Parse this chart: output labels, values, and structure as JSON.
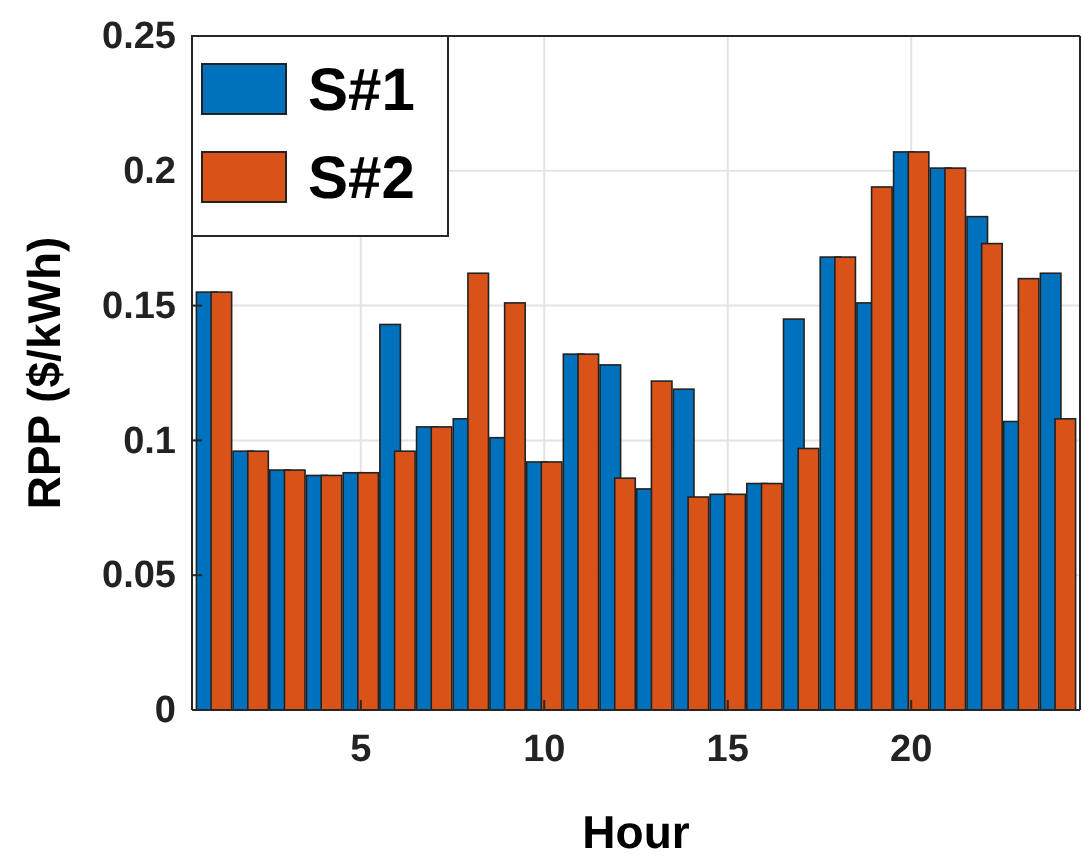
{
  "chart_data": {
    "type": "bar",
    "xlabel": "Hour",
    "ylabel": "RPP ($/kWh)",
    "x": [
      1,
      2,
      3,
      4,
      5,
      6,
      7,
      8,
      9,
      10,
      11,
      12,
      13,
      14,
      15,
      16,
      17,
      18,
      19,
      20,
      21,
      22,
      23,
      24
    ],
    "series": [
      {
        "name": "S#1",
        "color": "#0072bd",
        "values": [
          0.155,
          0.096,
          0.089,
          0.087,
          0.088,
          0.143,
          0.105,
          0.108,
          0.101,
          0.092,
          0.132,
          0.128,
          0.082,
          0.119,
          0.08,
          0.084,
          0.145,
          0.168,
          0.151,
          0.207,
          0.201,
          0.183,
          0.107,
          0.162
        ]
      },
      {
        "name": "S#2",
        "color": "#d95319",
        "values": [
          0.155,
          0.096,
          0.089,
          0.087,
          0.088,
          0.096,
          0.105,
          0.162,
          0.151,
          0.092,
          0.132,
          0.086,
          0.122,
          0.079,
          0.08,
          0.084,
          0.097,
          0.168,
          0.194,
          0.207,
          0.201,
          0.173,
          0.16,
          0.108
        ]
      }
    ],
    "xlim": [
      0.4,
      24.6
    ],
    "xticks": [
      5,
      10,
      15,
      20
    ],
    "ylim": [
      0,
      0.25
    ],
    "yticks": [
      0,
      0.05,
      0.1,
      0.15,
      0.2,
      0.25
    ],
    "grid": true,
    "legend": "top left"
  }
}
